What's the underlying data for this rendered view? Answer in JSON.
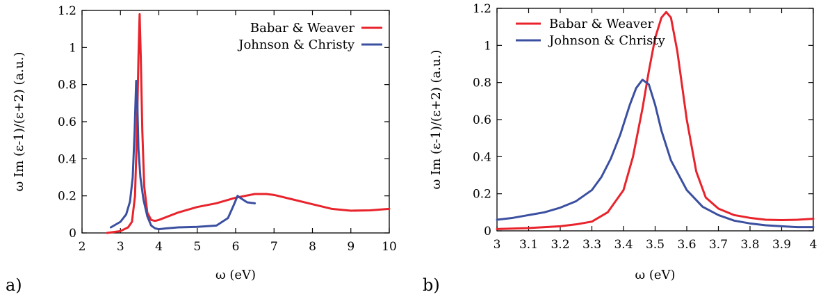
{
  "colors": {
    "red": "#e8232b",
    "blue": "#3b4fa0"
  },
  "chart_data": [
    {
      "type": "line",
      "panel_label": "a)",
      "xlabel": "ω (eV)",
      "ylabel": "ω Im (ε-1)/(ε+2) (a.u.)",
      "xlim": [
        2,
        10
      ],
      "ylim": [
        0,
        1.2
      ],
      "xticks": [
        "2",
        "3",
        "4",
        "5",
        "6",
        "7",
        "8",
        "9",
        "10"
      ],
      "yticks": [
        "0",
        "0.2",
        "0.4",
        "0.6",
        "0.8",
        "1",
        "1.2"
      ],
      "grid": false,
      "legend_position": "top-right",
      "series": [
        {
          "name": "Babar & Weaver",
          "color": "#e8232b",
          "x": [
            2.65,
            3.0,
            3.2,
            3.3,
            3.38,
            3.43,
            3.47,
            3.5,
            3.53,
            3.57,
            3.62,
            3.7,
            3.8,
            3.9,
            4.0,
            4.5,
            5.0,
            5.5,
            6.0,
            6.5,
            6.8,
            7.0,
            7.5,
            8.0,
            8.5,
            9.0,
            9.5,
            10.0
          ],
          "y": [
            0.0,
            0.01,
            0.03,
            0.06,
            0.2,
            0.55,
            0.95,
            1.18,
            0.95,
            0.55,
            0.25,
            0.11,
            0.07,
            0.065,
            0.07,
            0.11,
            0.14,
            0.16,
            0.19,
            0.21,
            0.21,
            0.205,
            0.18,
            0.155,
            0.13,
            0.12,
            0.122,
            0.13
          ]
        },
        {
          "name": "Johnson & Christy",
          "color": "#3b4fa0",
          "x": [
            2.75,
            3.0,
            3.15,
            3.25,
            3.32,
            3.37,
            3.41,
            3.44,
            3.47,
            3.52,
            3.6,
            3.7,
            3.8,
            3.9,
            4.0,
            4.2,
            4.5,
            5.0,
            5.5,
            5.8,
            5.95,
            6.05,
            6.15,
            6.3,
            6.5
          ],
          "y": [
            0.03,
            0.06,
            0.1,
            0.17,
            0.3,
            0.55,
            0.82,
            0.7,
            0.45,
            0.3,
            0.18,
            0.09,
            0.04,
            0.025,
            0.02,
            0.025,
            0.03,
            0.033,
            0.04,
            0.08,
            0.15,
            0.2,
            0.185,
            0.165,
            0.16
          ]
        }
      ]
    },
    {
      "type": "line",
      "panel_label": "b)",
      "xlabel": "ω (eV)",
      "ylabel": "ω Im (ε-1)/(ε+2) (a.u.)",
      "xlim": [
        3,
        4
      ],
      "ylim": [
        0,
        1.2
      ],
      "xticks": [
        "3",
        "3.1",
        "3.2",
        "3.3",
        "3.4",
        "3.5",
        "3.6",
        "3.7",
        "3.8",
        "3.9",
        "4"
      ],
      "yticks": [
        "0",
        "0.2",
        "0.4",
        "0.6",
        "0.8",
        "1",
        "1.2"
      ],
      "grid": false,
      "legend_position": "top-left",
      "series": [
        {
          "name": "Babar & Weaver",
          "color": "#e8232b",
          "x": [
            3.0,
            3.1,
            3.2,
            3.25,
            3.3,
            3.35,
            3.4,
            3.43,
            3.46,
            3.48,
            3.5,
            3.52,
            3.535,
            3.55,
            3.57,
            3.6,
            3.63,
            3.66,
            3.7,
            3.75,
            3.8,
            3.85,
            3.9,
            3.95,
            4.0
          ],
          "y": [
            0.01,
            0.015,
            0.025,
            0.035,
            0.05,
            0.1,
            0.22,
            0.4,
            0.66,
            0.86,
            1.04,
            1.15,
            1.18,
            1.15,
            0.97,
            0.6,
            0.32,
            0.18,
            0.12,
            0.085,
            0.07,
            0.06,
            0.058,
            0.06,
            0.065
          ]
        },
        {
          "name": "Johnson & Christy",
          "color": "#3b4fa0",
          "x": [
            3.0,
            3.05,
            3.1,
            3.15,
            3.2,
            3.25,
            3.3,
            3.33,
            3.36,
            3.39,
            3.42,
            3.44,
            3.46,
            3.48,
            3.5,
            3.52,
            3.55,
            3.6,
            3.65,
            3.7,
            3.75,
            3.8,
            3.85,
            3.9,
            3.95,
            4.0
          ],
          "y": [
            0.06,
            0.07,
            0.085,
            0.1,
            0.125,
            0.16,
            0.22,
            0.29,
            0.39,
            0.52,
            0.68,
            0.77,
            0.815,
            0.79,
            0.68,
            0.54,
            0.38,
            0.22,
            0.13,
            0.085,
            0.055,
            0.04,
            0.03,
            0.025,
            0.02,
            0.02
          ]
        }
      ]
    }
  ]
}
